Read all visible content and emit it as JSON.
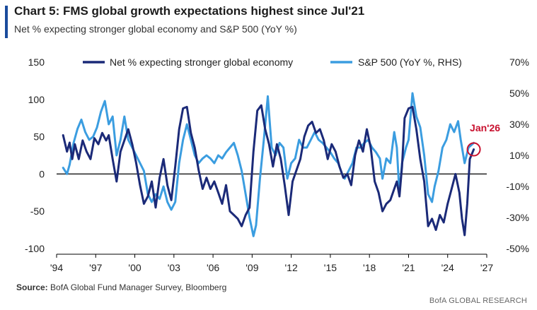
{
  "title": "Chart 5: FMS global growth expectations highest since Jul'21",
  "subtitle": "Net % expecting stronger global economy and S&P 500 (YoY %)",
  "source_label": "Source:",
  "source_text": "BofA Global Fund Manager Survey, Bloomberg",
  "footer": "BofA GLOBAL RESEARCH",
  "colors": {
    "series_dark": "#1b2a78",
    "series_light": "#3b9de0",
    "annotation": "#c8102e"
  },
  "chart_data": {
    "type": "line",
    "x_range": [
      1994,
      2027
    ],
    "x_ticks": [
      1994,
      1997,
      2000,
      2003,
      2006,
      2009,
      2012,
      2015,
      2018,
      2021,
      2024,
      2027
    ],
    "x_tick_labels": [
      "'94",
      "'97",
      "'00",
      "'03",
      "'06",
      "'09",
      "'12",
      "'15",
      "'18",
      "'21",
      "'24",
      "'27"
    ],
    "y_left": {
      "range": [
        -100,
        150
      ],
      "ticks": [
        -100,
        -50,
        0,
        50,
        100,
        150
      ],
      "tick_labels": [
        "-100",
        "-50",
        "0",
        "50",
        "100",
        "150"
      ]
    },
    "y_right": {
      "range": [
        -50,
        70
      ],
      "ticks": [
        -50,
        -30,
        -10,
        10,
        30,
        50,
        70
      ],
      "tick_labels": [
        "-50%",
        "-30%",
        "-10%",
        "10%",
        "30%",
        "50%",
        "70%"
      ]
    },
    "legend": {
      "placement": "top"
    },
    "annotation": {
      "label": "Jan'26",
      "x": 2026.0,
      "y": 33
    },
    "series": [
      {
        "name": "Net % expecting stronger global economy",
        "axis": "left",
        "points": [
          [
            1994.5,
            52
          ],
          [
            1994.8,
            30
          ],
          [
            1995.0,
            42
          ],
          [
            1995.2,
            20
          ],
          [
            1995.4,
            40
          ],
          [
            1995.7,
            20
          ],
          [
            1996.0,
            45
          ],
          [
            1996.3,
            30
          ],
          [
            1996.6,
            20
          ],
          [
            1996.9,
            48
          ],
          [
            1997.2,
            40
          ],
          [
            1997.5,
            55
          ],
          [
            1997.8,
            45
          ],
          [
            1998.0,
            52
          ],
          [
            1998.3,
            20
          ],
          [
            1998.6,
            -10
          ],
          [
            1998.9,
            30
          ],
          [
            1999.2,
            45
          ],
          [
            1999.5,
            60
          ],
          [
            1999.8,
            40
          ],
          [
            2000.1,
            15
          ],
          [
            2000.4,
            -15
          ],
          [
            2000.7,
            -40
          ],
          [
            2001.0,
            -30
          ],
          [
            2001.3,
            -10
          ],
          [
            2001.6,
            -45
          ],
          [
            2001.9,
            -5
          ],
          [
            2002.2,
            20
          ],
          [
            2002.5,
            -15
          ],
          [
            2002.8,
            -35
          ],
          [
            2003.1,
            10
          ],
          [
            2003.4,
            60
          ],
          [
            2003.7,
            88
          ],
          [
            2004.0,
            90
          ],
          [
            2004.3,
            55
          ],
          [
            2004.6,
            35
          ],
          [
            2004.9,
            5
          ],
          [
            2005.2,
            -20
          ],
          [
            2005.5,
            -5
          ],
          [
            2005.8,
            -20
          ],
          [
            2006.1,
            -10
          ],
          [
            2006.4,
            -25
          ],
          [
            2006.7,
            -40
          ],
          [
            2007.0,
            -15
          ],
          [
            2007.3,
            -50
          ],
          [
            2007.6,
            -55
          ],
          [
            2007.9,
            -60
          ],
          [
            2008.2,
            -70
          ],
          [
            2008.5,
            -55
          ],
          [
            2008.8,
            -45
          ],
          [
            2009.1,
            30
          ],
          [
            2009.4,
            85
          ],
          [
            2009.7,
            92
          ],
          [
            2010.0,
            60
          ],
          [
            2010.3,
            40
          ],
          [
            2010.6,
            10
          ],
          [
            2010.9,
            40
          ],
          [
            2011.2,
            20
          ],
          [
            2011.5,
            -15
          ],
          [
            2011.8,
            -55
          ],
          [
            2012.1,
            -10
          ],
          [
            2012.4,
            5
          ],
          [
            2012.7,
            20
          ],
          [
            2013.0,
            50
          ],
          [
            2013.3,
            65
          ],
          [
            2013.6,
            70
          ],
          [
            2013.9,
            55
          ],
          [
            2014.2,
            60
          ],
          [
            2014.5,
            45
          ],
          [
            2014.8,
            20
          ],
          [
            2015.1,
            40
          ],
          [
            2015.4,
            30
          ],
          [
            2015.7,
            10
          ],
          [
            2016.0,
            -5
          ],
          [
            2016.3,
            0
          ],
          [
            2016.6,
            -15
          ],
          [
            2016.9,
            25
          ],
          [
            2017.2,
            45
          ],
          [
            2017.5,
            30
          ],
          [
            2017.8,
            60
          ],
          [
            2018.1,
            35
          ],
          [
            2018.4,
            -10
          ],
          [
            2018.7,
            -25
          ],
          [
            2019.0,
            -50
          ],
          [
            2019.3,
            -40
          ],
          [
            2019.6,
            -35
          ],
          [
            2019.9,
            -20
          ],
          [
            2020.1,
            -10
          ],
          [
            2020.3,
            -30
          ],
          [
            2020.5,
            10
          ],
          [
            2020.7,
            75
          ],
          [
            2021.0,
            88
          ],
          [
            2021.3,
            90
          ],
          [
            2021.6,
            60
          ],
          [
            2021.9,
            20
          ],
          [
            2022.2,
            -10
          ],
          [
            2022.5,
            -70
          ],
          [
            2022.8,
            -60
          ],
          [
            2023.1,
            -75
          ],
          [
            2023.4,
            -55
          ],
          [
            2023.7,
            -65
          ],
          [
            2024.0,
            -40
          ],
          [
            2024.3,
            -20
          ],
          [
            2024.6,
            0
          ],
          [
            2024.9,
            -25
          ],
          [
            2025.1,
            -60
          ],
          [
            2025.3,
            -82
          ],
          [
            2025.5,
            -40
          ],
          [
            2025.7,
            20
          ],
          [
            2026.0,
            33
          ]
        ]
      },
      {
        "name": "S&P 500 (YoY %, RHS)",
        "axis": "right",
        "points": [
          [
            1994.5,
            2
          ],
          [
            1994.8,
            -2
          ],
          [
            1995.0,
            4
          ],
          [
            1995.3,
            18
          ],
          [
            1995.6,
            27
          ],
          [
            1995.9,
            33
          ],
          [
            1996.2,
            25
          ],
          [
            1996.5,
            20
          ],
          [
            1996.8,
            22
          ],
          [
            1997.1,
            28
          ],
          [
            1997.4,
            38
          ],
          [
            1997.7,
            45
          ],
          [
            1998.0,
            30
          ],
          [
            1998.3,
            35
          ],
          [
            1998.6,
            10
          ],
          [
            1998.9,
            20
          ],
          [
            1999.2,
            35
          ],
          [
            1999.5,
            20
          ],
          [
            1999.8,
            15
          ],
          [
            2000.1,
            10
          ],
          [
            2000.4,
            5
          ],
          [
            2000.7,
            0
          ],
          [
            2001.0,
            -15
          ],
          [
            2001.3,
            -20
          ],
          [
            2001.6,
            -15
          ],
          [
            2001.9,
            -18
          ],
          [
            2002.2,
            -10
          ],
          [
            2002.5,
            -20
          ],
          [
            2002.8,
            -25
          ],
          [
            2003.1,
            -20
          ],
          [
            2003.4,
            5
          ],
          [
            2003.7,
            20
          ],
          [
            2004.0,
            30
          ],
          [
            2004.3,
            20
          ],
          [
            2004.6,
            10
          ],
          [
            2004.9,
            5
          ],
          [
            2005.2,
            8
          ],
          [
            2005.5,
            10
          ],
          [
            2005.8,
            8
          ],
          [
            2006.1,
            5
          ],
          [
            2006.4,
            10
          ],
          [
            2006.7,
            8
          ],
          [
            2007.0,
            12
          ],
          [
            2007.3,
            15
          ],
          [
            2007.6,
            18
          ],
          [
            2007.9,
            10
          ],
          [
            2008.2,
            0
          ],
          [
            2008.5,
            -15
          ],
          [
            2008.8,
            -30
          ],
          [
            2009.1,
            -42
          ],
          [
            2009.3,
            -35
          ],
          [
            2009.6,
            -5
          ],
          [
            2009.9,
            20
          ],
          [
            2010.2,
            48
          ],
          [
            2010.5,
            15
          ],
          [
            2010.8,
            10
          ],
          [
            2011.1,
            18
          ],
          [
            2011.4,
            15
          ],
          [
            2011.7,
            -5
          ],
          [
            2012.0,
            5
          ],
          [
            2012.3,
            8
          ],
          [
            2012.6,
            20
          ],
          [
            2012.9,
            15
          ],
          [
            2013.2,
            15
          ],
          [
            2013.5,
            20
          ],
          [
            2013.8,
            25
          ],
          [
            2014.1,
            20
          ],
          [
            2014.4,
            18
          ],
          [
            2014.7,
            15
          ],
          [
            2015.0,
            12
          ],
          [
            2015.3,
            8
          ],
          [
            2015.6,
            5
          ],
          [
            2015.9,
            -2
          ],
          [
            2016.1,
            -5
          ],
          [
            2016.4,
            0
          ],
          [
            2016.7,
            5
          ],
          [
            2017.0,
            15
          ],
          [
            2017.3,
            15
          ],
          [
            2017.6,
            18
          ],
          [
            2017.9,
            20
          ],
          [
            2018.2,
            15
          ],
          [
            2018.5,
            12
          ],
          [
            2018.8,
            8
          ],
          [
            2019.0,
            -5
          ],
          [
            2019.3,
            8
          ],
          [
            2019.6,
            5
          ],
          [
            2019.9,
            25
          ],
          [
            2020.1,
            15
          ],
          [
            2020.3,
            -15
          ],
          [
            2020.5,
            5
          ],
          [
            2020.8,
            15
          ],
          [
            2021.0,
            20
          ],
          [
            2021.3,
            50
          ],
          [
            2021.6,
            35
          ],
          [
            2021.9,
            28
          ],
          [
            2022.2,
            10
          ],
          [
            2022.5,
            -15
          ],
          [
            2022.8,
            -20
          ],
          [
            2023.0,
            -10
          ],
          [
            2023.3,
            0
          ],
          [
            2023.6,
            15
          ],
          [
            2023.9,
            20
          ],
          [
            2024.2,
            30
          ],
          [
            2024.5,
            25
          ],
          [
            2024.8,
            32
          ],
          [
            2025.0,
            20
          ],
          [
            2025.3,
            5
          ],
          [
            2025.6,
            15
          ],
          [
            2026.0,
            18
          ]
        ]
      }
    ]
  }
}
